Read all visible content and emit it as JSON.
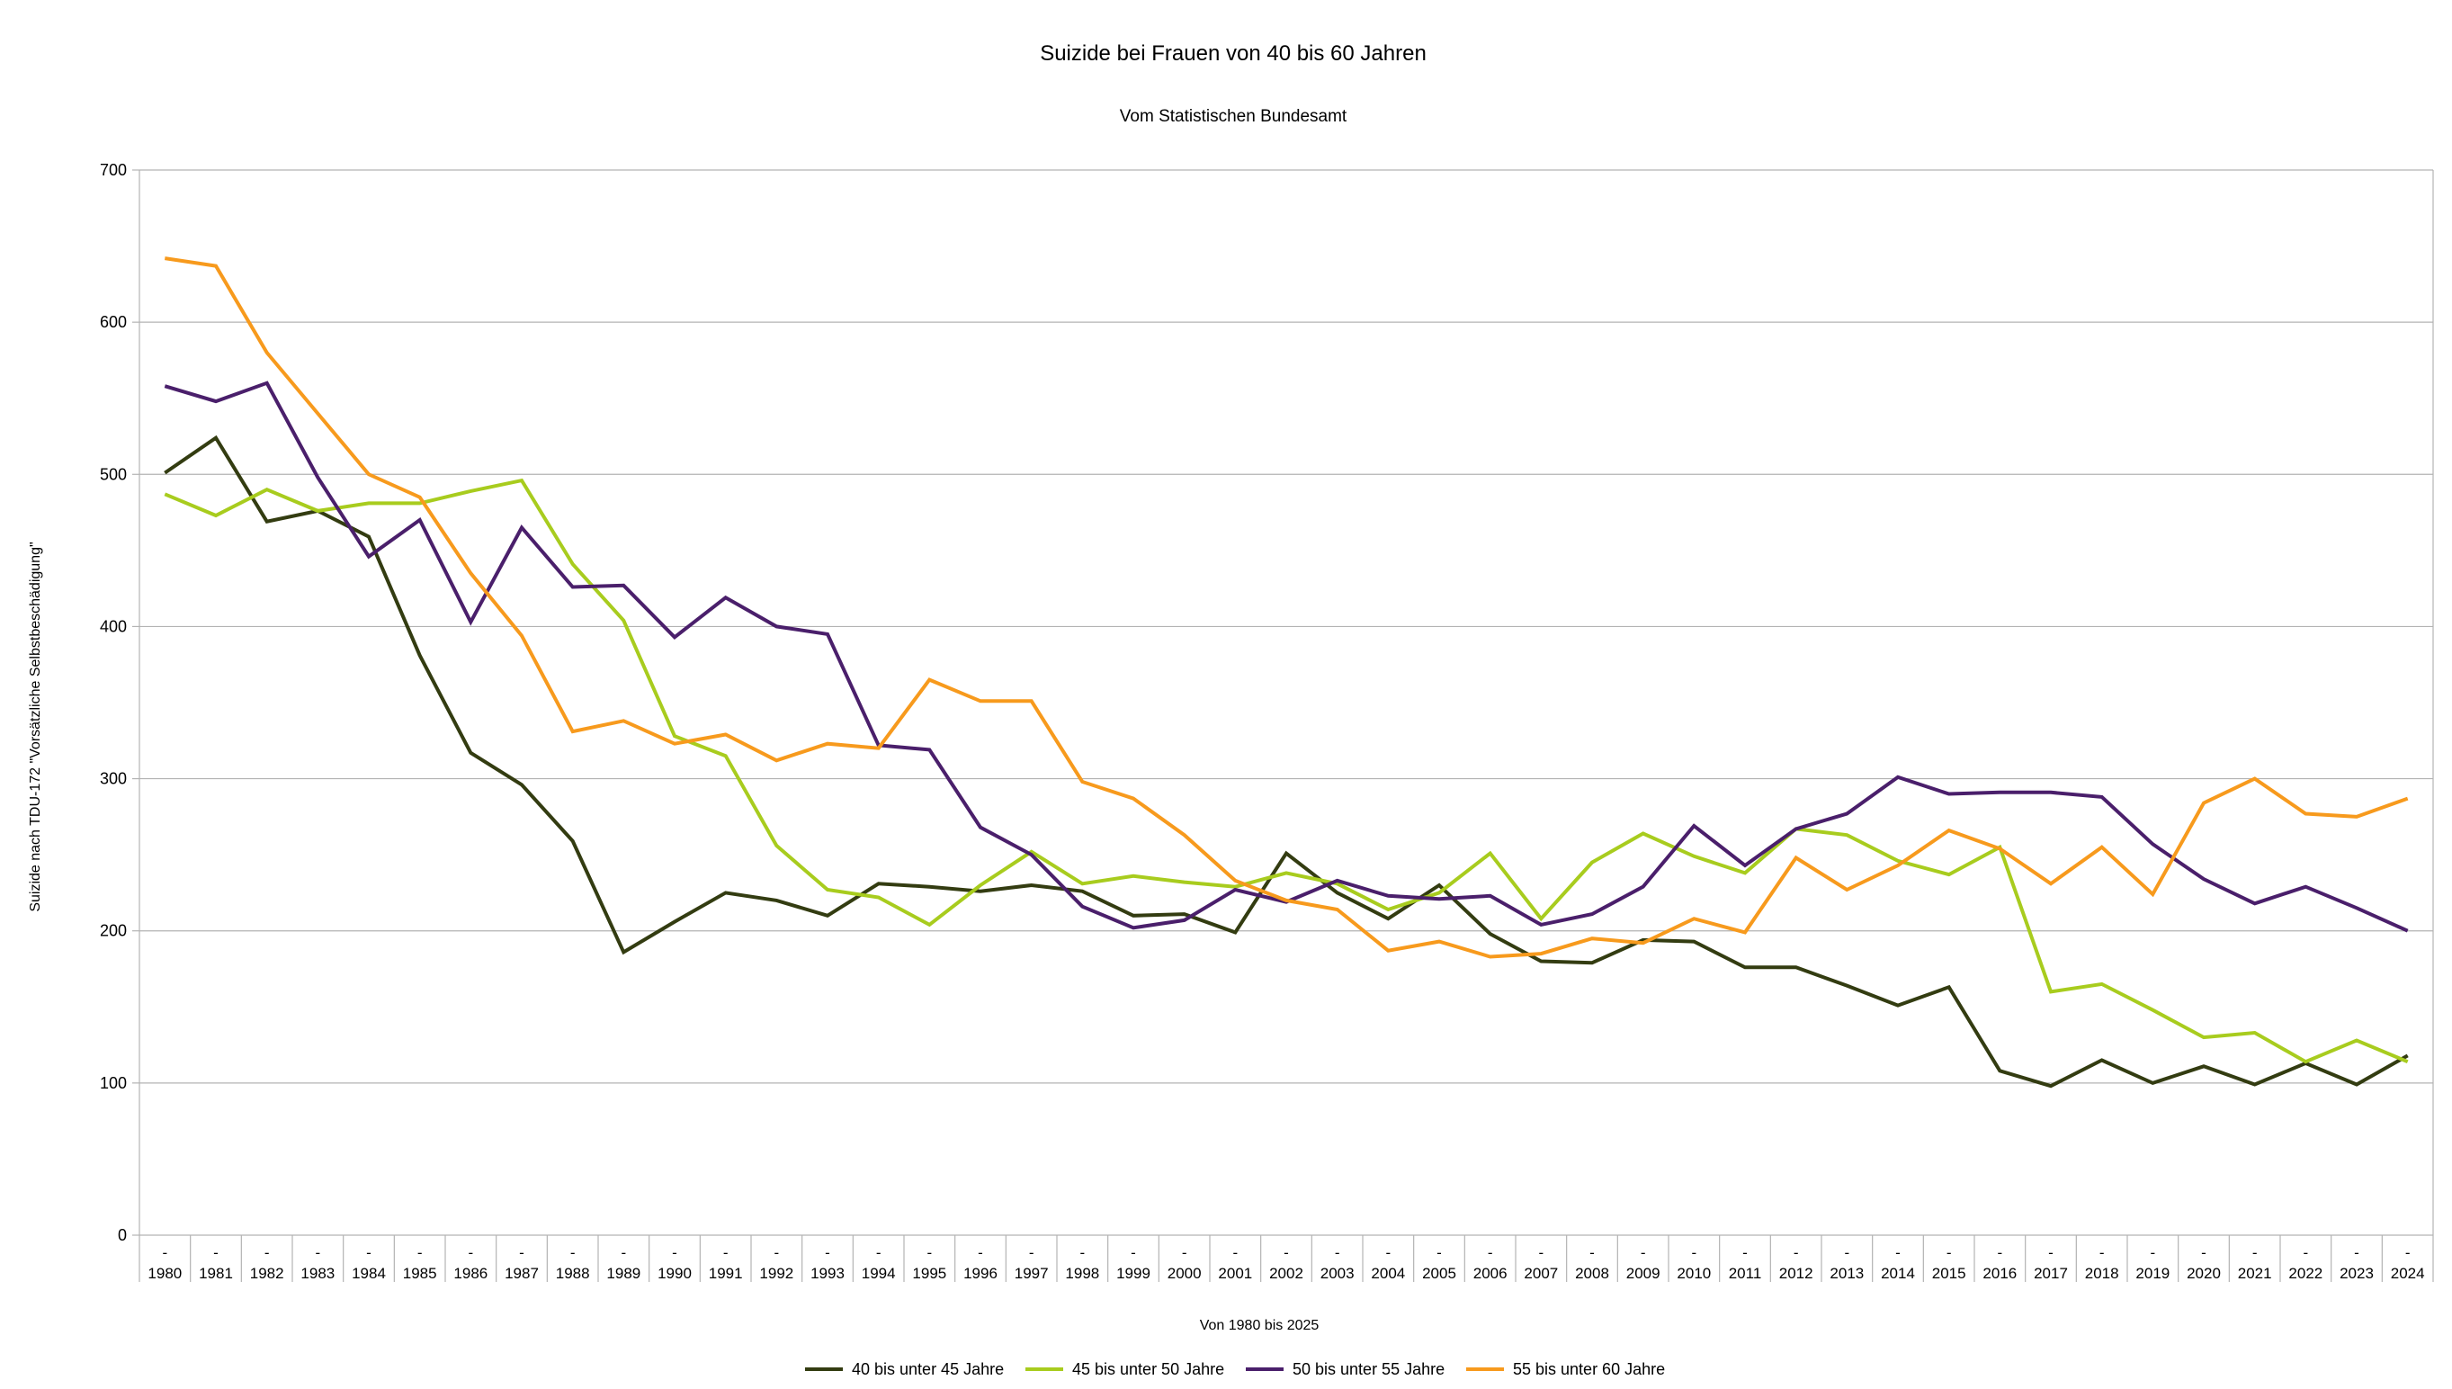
{
  "chart_data": {
    "type": "line",
    "title": "Suizide bei Frauen von 40 bis 60 Jahren",
    "subtitle": "Vom Statistischen Bundesamt",
    "xlabel": "Von 1980 bis 2025",
    "ylabel": "Suizide nach TDU-172 \"Vorsätzliche Selbstbeschädigung\"",
    "ylim": [
      0,
      700
    ],
    "yticks": [
      "0",
      "100",
      "200",
      "300",
      "400",
      "500",
      "600",
      "700"
    ],
    "grid": true,
    "legend_position": "bottom",
    "category_prefix": "-",
    "categories": [
      "1980",
      "1981",
      "1982",
      "1983",
      "1984",
      "1985",
      "1986",
      "1987",
      "1988",
      "1989",
      "1990",
      "1991",
      "1992",
      "1993",
      "1994",
      "1995",
      "1996",
      "1997",
      "1998",
      "1999",
      "2000",
      "2001",
      "2002",
      "2003",
      "2004",
      "2005",
      "2006",
      "2007",
      "2008",
      "2009",
      "2010",
      "2011",
      "2012",
      "2013",
      "2014",
      "2015",
      "2016",
      "2017",
      "2018",
      "2019",
      "2020",
      "2021",
      "2022",
      "2023",
      "2024"
    ],
    "series": [
      {
        "name": "40 bis unter 45 Jahre",
        "color": "#333c11",
        "values": [
          501,
          524,
          469,
          476,
          459,
          381,
          317,
          296,
          259,
          186,
          206,
          225,
          220,
          210,
          231,
          229,
          226,
          230,
          226,
          210,
          211,
          199,
          251,
          225,
          208,
          230,
          198,
          180,
          179,
          194,
          193,
          176,
          176,
          164,
          151,
          163,
          108,
          98,
          115,
          100,
          111,
          99,
          113,
          99,
          118
        ]
      },
      {
        "name": "45 bis unter 50 Jahre",
        "color": "#a8cc1e",
        "values": [
          487,
          473,
          490,
          476,
          481,
          481,
          489,
          496,
          441,
          404,
          328,
          315,
          256,
          227,
          222,
          204,
          230,
          252,
          231,
          236,
          232,
          229,
          238,
          231,
          214,
          225,
          251,
          208,
          245,
          264,
          249,
          238,
          267,
          263,
          246,
          237,
          255,
          160,
          165,
          148,
          130,
          133,
          114,
          128,
          114
        ]
      },
      {
        "name": "50 bis unter 55 Jahre",
        "color": "#4a1f6b",
        "values": [
          558,
          548,
          560,
          498,
          446,
          470,
          403,
          465,
          426,
          427,
          393,
          419,
          400,
          395,
          322,
          319,
          268,
          250,
          216,
          202,
          207,
          227,
          219,
          233,
          223,
          221,
          223,
          204,
          211,
          229,
          269,
          243,
          267,
          277,
          301,
          290,
          291,
          291,
          288,
          257,
          234,
          218,
          229,
          215,
          200
        ]
      },
      {
        "name": "55 bis unter 60 Jahre",
        "color": "#f79a1d",
        "values": [
          642,
          637,
          580,
          540,
          500,
          485,
          435,
          394,
          331,
          338,
          323,
          329,
          312,
          323,
          320,
          365,
          351,
          351,
          298,
          287,
          263,
          233,
          220,
          214,
          187,
          193,
          183,
          185,
          195,
          192,
          208,
          199,
          248,
          227,
          243,
          266,
          254,
          231,
          255,
          224,
          284,
          300,
          277,
          275,
          287
        ]
      }
    ]
  }
}
